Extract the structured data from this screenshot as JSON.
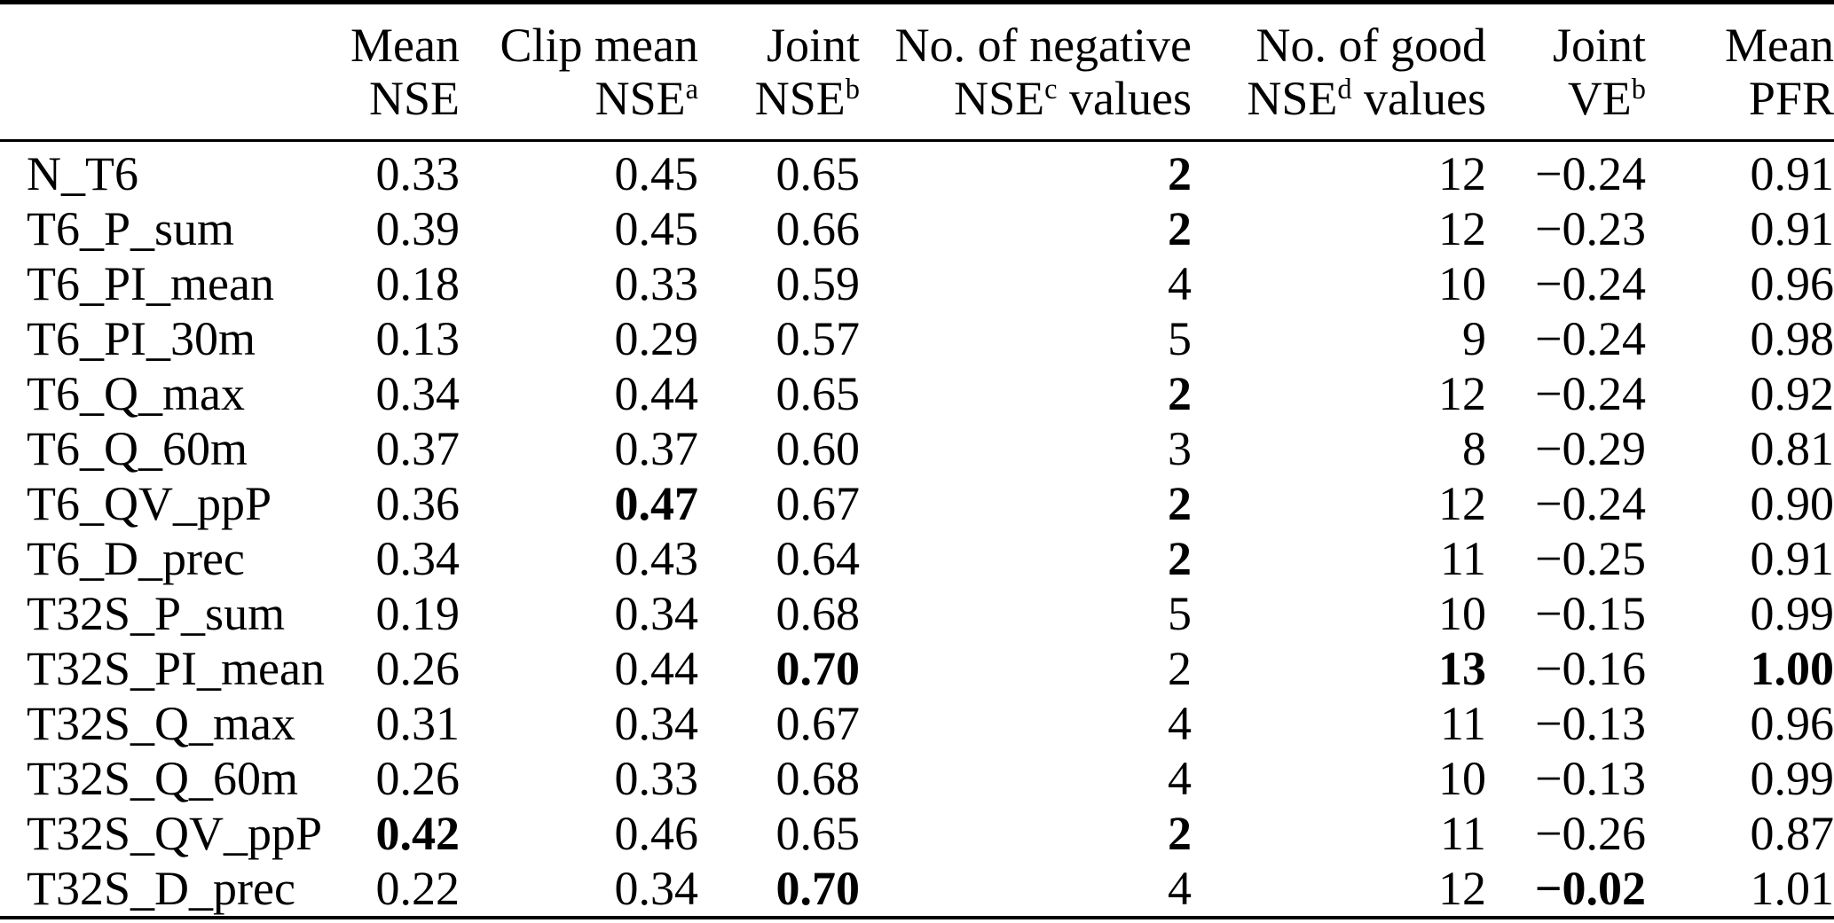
{
  "table": {
    "columns": [
      {
        "line1": "",
        "line2_pre": "",
        "sup": "",
        "line2_post": ""
      },
      {
        "line1": "Mean",
        "line2_pre": "NSE",
        "sup": "",
        "line2_post": ""
      },
      {
        "line1": "Clip mean",
        "line2_pre": "NSE",
        "sup": "a",
        "line2_post": ""
      },
      {
        "line1": "Joint",
        "line2_pre": "NSE",
        "sup": "b",
        "line2_post": ""
      },
      {
        "line1": "No. of negative",
        "line2_pre": "NSE",
        "sup": "c",
        "line2_post": " values"
      },
      {
        "line1": "No. of good",
        "line2_pre": "NSE",
        "sup": "d",
        "line2_post": " values"
      },
      {
        "line1": "Joint",
        "line2_pre": "VE",
        "sup": "b",
        "line2_post": ""
      },
      {
        "line1": "Mean",
        "line2_pre": "PFR",
        "sup": "",
        "line2_post": ""
      }
    ],
    "rows": [
      {
        "label": "N_T6",
        "cells": [
          {
            "v": "0.33"
          },
          {
            "v": "0.45"
          },
          {
            "v": "0.65"
          },
          {
            "v": "2",
            "bold": true
          },
          {
            "v": "12"
          },
          {
            "v": "−0.24"
          },
          {
            "v": "0.91"
          }
        ]
      },
      {
        "label": "T6_P_sum",
        "cells": [
          {
            "v": "0.39"
          },
          {
            "v": "0.45"
          },
          {
            "v": "0.66"
          },
          {
            "v": "2",
            "bold": true
          },
          {
            "v": "12"
          },
          {
            "v": "−0.23"
          },
          {
            "v": "0.91"
          }
        ]
      },
      {
        "label": "T6_PI_mean",
        "cells": [
          {
            "v": "0.18"
          },
          {
            "v": "0.33"
          },
          {
            "v": "0.59"
          },
          {
            "v": "4"
          },
          {
            "v": "10"
          },
          {
            "v": "−0.24"
          },
          {
            "v": "0.96"
          }
        ]
      },
      {
        "label": "T6_PI_30m",
        "cells": [
          {
            "v": "0.13"
          },
          {
            "v": "0.29"
          },
          {
            "v": "0.57"
          },
          {
            "v": "5"
          },
          {
            "v": "9"
          },
          {
            "v": "−0.24"
          },
          {
            "v": "0.98"
          }
        ]
      },
      {
        "label": "T6_Q_max",
        "cells": [
          {
            "v": "0.34"
          },
          {
            "v": "0.44"
          },
          {
            "v": "0.65"
          },
          {
            "v": "2",
            "bold": true
          },
          {
            "v": "12"
          },
          {
            "v": "−0.24"
          },
          {
            "v": "0.92"
          }
        ]
      },
      {
        "label": "T6_Q_60m",
        "cells": [
          {
            "v": "0.37"
          },
          {
            "v": "0.37"
          },
          {
            "v": "0.60"
          },
          {
            "v": "3"
          },
          {
            "v": "8"
          },
          {
            "v": "−0.29"
          },
          {
            "v": "0.81"
          }
        ]
      },
      {
        "label": "T6_QV_ppP",
        "cells": [
          {
            "v": "0.36"
          },
          {
            "v": "0.47",
            "bold": true
          },
          {
            "v": "0.67"
          },
          {
            "v": "2",
            "bold": true
          },
          {
            "v": "12"
          },
          {
            "v": "−0.24"
          },
          {
            "v": "0.90"
          }
        ]
      },
      {
        "label": "T6_D_prec",
        "cells": [
          {
            "v": "0.34"
          },
          {
            "v": "0.43"
          },
          {
            "v": "0.64"
          },
          {
            "v": "2",
            "bold": true
          },
          {
            "v": "11"
          },
          {
            "v": "−0.25"
          },
          {
            "v": "0.91"
          }
        ]
      },
      {
        "label": "T32S_P_sum",
        "cells": [
          {
            "v": "0.19"
          },
          {
            "v": "0.34"
          },
          {
            "v": "0.68"
          },
          {
            "v": "5"
          },
          {
            "v": "10"
          },
          {
            "v": "−0.15"
          },
          {
            "v": "0.99"
          }
        ]
      },
      {
        "label": "T32S_PI_mean",
        "cells": [
          {
            "v": "0.26"
          },
          {
            "v": "0.44"
          },
          {
            "v": "0.70",
            "bold": true
          },
          {
            "v": "2"
          },
          {
            "v": "13",
            "bold": true
          },
          {
            "v": "−0.16"
          },
          {
            "v": "1.00",
            "bold": true
          }
        ]
      },
      {
        "label": "T32S_Q_max",
        "cells": [
          {
            "v": "0.31"
          },
          {
            "v": "0.34"
          },
          {
            "v": "0.67"
          },
          {
            "v": "4"
          },
          {
            "v": "11"
          },
          {
            "v": "−0.13"
          },
          {
            "v": "0.96"
          }
        ]
      },
      {
        "label": "T32S_Q_60m",
        "cells": [
          {
            "v": "0.26"
          },
          {
            "v": "0.33"
          },
          {
            "v": "0.68"
          },
          {
            "v": "4"
          },
          {
            "v": "10"
          },
          {
            "v": "−0.13"
          },
          {
            "v": "0.99"
          }
        ]
      },
      {
        "label": "T32S_QV_ppP",
        "cells": [
          {
            "v": "0.42",
            "bold": true
          },
          {
            "v": "0.46"
          },
          {
            "v": "0.65"
          },
          {
            "v": "2",
            "bold": true
          },
          {
            "v": "11"
          },
          {
            "v": "−0.26"
          },
          {
            "v": "0.87"
          }
        ]
      },
      {
        "label": "T32S_D_prec",
        "cells": [
          {
            "v": "0.22"
          },
          {
            "v": "0.34"
          },
          {
            "v": "0.70",
            "bold": true
          },
          {
            "v": "4"
          },
          {
            "v": "12"
          },
          {
            "v": "−0.02",
            "bold": true
          },
          {
            "v": "1.01"
          }
        ]
      }
    ]
  },
  "colors": {
    "text": "#000000",
    "background": "#ffffff",
    "rule": "#000000"
  }
}
